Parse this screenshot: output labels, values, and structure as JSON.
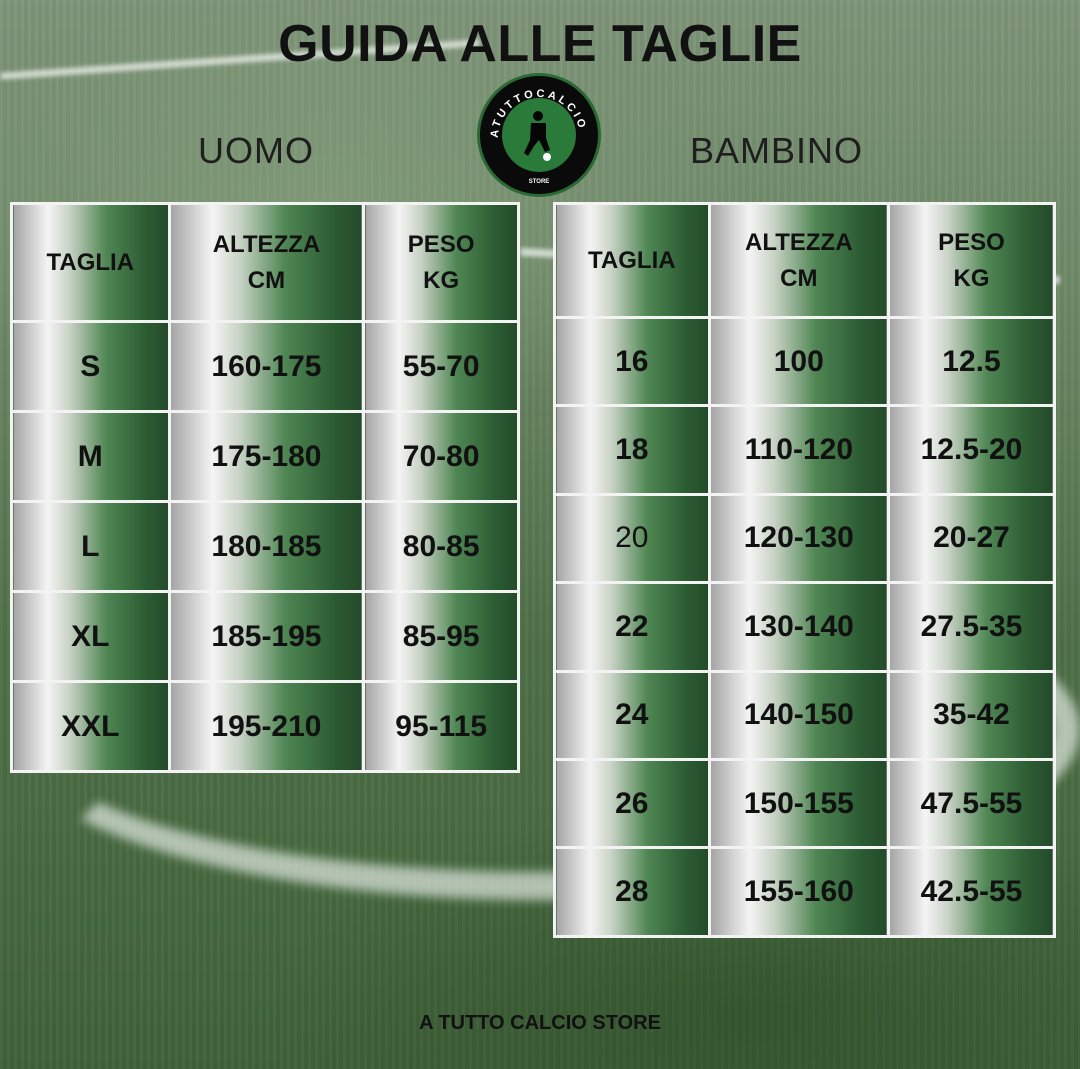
{
  "title": "GUIDA ALLE TAGLIE",
  "logo": {
    "text_top": "ATUTTOCALCIO",
    "text_bottom": "STORE",
    "colors": {
      "ring": "#0a0a0a",
      "center": "#2a7a3a"
    }
  },
  "uomo": {
    "label": "UOMO",
    "headers": [
      [
        "TAGLIA"
      ],
      [
        "ALTEZZA",
        "CM"
      ],
      [
        "PESO",
        "KG"
      ]
    ],
    "rows": [
      [
        "S",
        "160-175",
        "55-70"
      ],
      [
        "M",
        "175-180",
        "70-80"
      ],
      [
        "L",
        "180-185",
        "80-85"
      ],
      [
        "XL",
        "185-195",
        "85-95"
      ],
      [
        "XXL",
        "195-210",
        "95-115"
      ]
    ]
  },
  "bambino": {
    "label": "BAMBINO",
    "headers": [
      [
        "TAGLIA"
      ],
      [
        "ALTEZZA",
        "CM"
      ],
      [
        "PESO",
        "KG"
      ]
    ],
    "rows": [
      [
        "16",
        "100",
        "12.5"
      ],
      [
        "18",
        "110-120",
        "12.5-20"
      ],
      [
        "20",
        "120-130",
        "20-27"
      ],
      [
        "22",
        "130-140",
        "27.5-35"
      ],
      [
        "24",
        "140-150",
        "35-42"
      ],
      [
        "26",
        "150-155",
        "47.5-55"
      ],
      [
        "28",
        "155-160",
        "42.5-55"
      ]
    ]
  },
  "footer": "A TUTTO CALCIO STORE"
}
